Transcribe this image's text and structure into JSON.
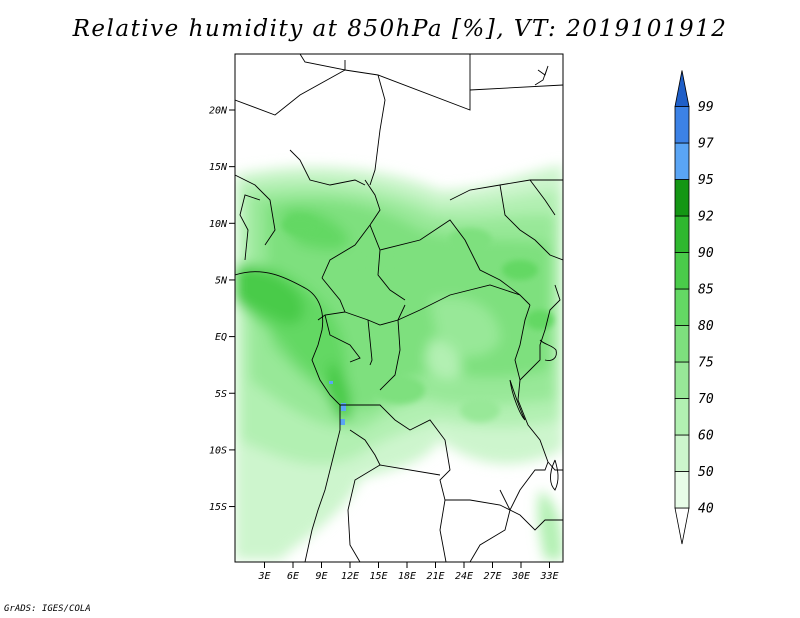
{
  "title": "Relative humidity at 850hPa [%], VT: 2019101912",
  "footer": "GrADS: IGES/COLA",
  "map": {
    "lat_labels": [
      "20N",
      "15N",
      "10N",
      "5N",
      "EQ",
      "5S",
      "10S",
      "15S"
    ],
    "lat_values": [
      20,
      15,
      10,
      5,
      0,
      -5,
      -10,
      -15
    ],
    "lon_labels": [
      "3E",
      "6E",
      "9E",
      "12E",
      "15E",
      "18E",
      "21E",
      "24E",
      "27E",
      "30E",
      "33E"
    ],
    "lon_values": [
      3,
      6,
      9,
      12,
      15,
      18,
      21,
      24,
      27,
      30,
      33
    ]
  },
  "colorbar": {
    "levels": [
      "40",
      "50",
      "60",
      "70",
      "75",
      "80",
      "85",
      "90",
      "92",
      "95",
      "97",
      "99"
    ],
    "colors": [
      "#ffffff",
      "#e8fce8",
      "#cdf5cd",
      "#b2f0b2",
      "#98e898",
      "#7ee07e",
      "#64d864",
      "#4acb4a",
      "#2fb82f",
      "#149614",
      "#5aa5f5",
      "#3c82e6",
      "#1f5fc8"
    ]
  }
}
